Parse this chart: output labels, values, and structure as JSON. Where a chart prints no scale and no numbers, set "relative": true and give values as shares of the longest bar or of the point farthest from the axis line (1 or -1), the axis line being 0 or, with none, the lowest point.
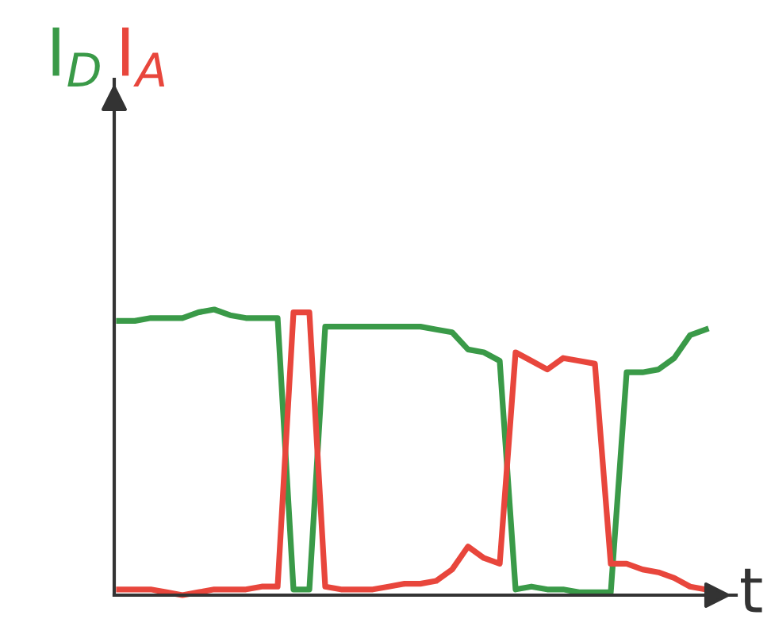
{
  "chart_data": {
    "type": "line",
    "relative": true,
    "xlabel": "t",
    "grid": false,
    "legend": false,
    "marker": "none",
    "line_style": "solid",
    "categories": [
      null,
      null,
      null,
      null,
      null,
      null,
      null,
      null,
      null,
      null,
      null,
      null,
      null,
      null,
      null,
      null,
      null,
      null,
      null,
      null,
      null,
      null,
      null,
      null,
      null,
      null,
      null,
      null,
      null,
      null,
      null,
      null,
      null,
      null,
      null,
      null,
      null,
      null
    ],
    "series": [
      {
        "name": "I$_{D}$",
        "color": "#3a9a48",
        "values": [
          0.96,
          0.96,
          0.97,
          0.97,
          0.97,
          0.99,
          1.0,
          0.98,
          0.97,
          0.97,
          0.97,
          0.02,
          0.02,
          0.94,
          0.94,
          0.94,
          0.94,
          0.94,
          0.94,
          0.94,
          0.93,
          0.92,
          0.86,
          0.85,
          0.82,
          0.02,
          0.03,
          0.02,
          0.02,
          0.01,
          0.01,
          0.01,
          0.78,
          0.78,
          0.79,
          0.83,
          0.91,
          0.93
        ]
      },
      {
        "name": "I$_{A}$",
        "color": "#e8463c",
        "values": [
          0.02,
          0.02,
          0.02,
          0.01,
          0.0,
          0.01,
          0.02,
          0.02,
          0.02,
          0.03,
          0.03,
          0.99,
          0.99,
          0.03,
          0.02,
          0.02,
          0.02,
          0.03,
          0.04,
          0.04,
          0.05,
          0.09,
          0.17,
          0.13,
          0.11,
          0.85,
          0.82,
          0.79,
          0.83,
          0.82,
          0.81,
          0.11,
          0.11,
          0.09,
          0.08,
          0.06,
          0.03,
          0.02
        ]
      }
    ]
  }
}
